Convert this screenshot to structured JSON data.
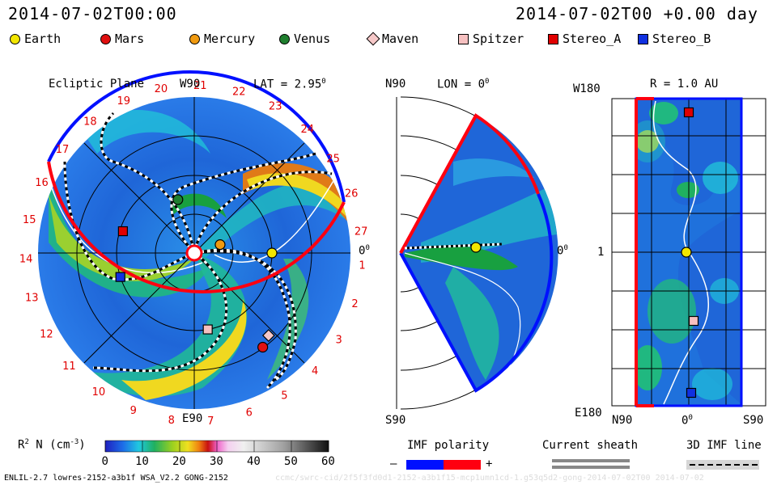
{
  "header": {
    "left_time": "2014-07-02T00:00",
    "right_time": "2014-07-02T00 +0.00 day"
  },
  "legend": [
    {
      "name": "Earth",
      "shape": "circle",
      "color": "#f2e600"
    },
    {
      "name": "Mars",
      "shape": "circle",
      "color": "#e01010"
    },
    {
      "name": "Mercury",
      "shape": "circle",
      "color": "#f09a10"
    },
    {
      "name": "Venus",
      "shape": "circle",
      "color": "#1f7f2f"
    },
    {
      "name": "Maven",
      "shape": "diamond",
      "color": "#f6c8c8"
    },
    {
      "name": "Spitzer",
      "shape": "square",
      "color": "#f6c0c0"
    },
    {
      "name": "Stereo_A",
      "shape": "square",
      "color": "#e00000"
    },
    {
      "name": "Stereo_B",
      "shape": "square",
      "color": "#1030e0"
    }
  ],
  "ecliptic_panel": {
    "title": "Ecliptic Plane",
    "top_label": "W90",
    "lat_label": "LAT = 2.95",
    "lat_sup": "0",
    "right_label": "0",
    "right_sup": "0",
    "bottom_label": "E90",
    "rotation_numbers": [
      "1",
      "2",
      "3",
      "4",
      "5",
      "6",
      "7",
      "8",
      "9",
      "10",
      "11",
      "12",
      "13",
      "14",
      "15",
      "16",
      "17",
      "18",
      "19",
      "20",
      "21",
      "22",
      "23",
      "24",
      "25",
      "26",
      "27"
    ]
  },
  "meridional_panel": {
    "top_left": "N90",
    "lon_label": "LON = 0",
    "lon_sup": "0",
    "right_label": "0",
    "right_sup": "0",
    "bottom_left": "S90"
  },
  "synoptic_panel": {
    "top_left": "W180",
    "radius_label": "R = 1.0 AU",
    "mid_left": "1",
    "bottom_left": "E180",
    "x_left": "N90",
    "x_mid": "0",
    "x_mid_sup": "0",
    "x_right": "S90"
  },
  "colorbar": {
    "label": "R",
    "label_sup": "2",
    "label_rest": " N (cm",
    "label_sup2": "-3",
    "label_end": ")",
    "ticks": [
      "0",
      "10",
      "20",
      "30",
      "40",
      "50",
      "60"
    ],
    "range": [
      0,
      60
    ]
  },
  "imf_polarity": {
    "title": "IMF polarity",
    "minus": "–",
    "plus": "+",
    "colors": [
      "#0010ff",
      "#ff0010"
    ]
  },
  "current_sheath": {
    "title": "Current sheath"
  },
  "imf_line": {
    "title": "3D IMF line"
  },
  "footer": {
    "model": "ENLIL-2.7 lowres-2152-a3b1f WSA_V2.2 GONG-2152",
    "watermark": "ccmc/swrc-cid/2f5f3fd0d1-2152-a3b1f15-mcp1umn1cd-1.g53q5d2-gong-2014-07-02T00   2014-07-02"
  },
  "chart_data": {
    "type": "heatmap",
    "title": "Ecliptic Plane",
    "quantity": "R^2 N (cm^-3)",
    "color_range": [
      0,
      60
    ],
    "positions_ecliptic_au": [
      {
        "name": "Earth",
        "r": 1.0,
        "lon_deg": 0
      },
      {
        "name": "Mercury",
        "r": 0.35,
        "lon_deg": 18
      },
      {
        "name": "Venus",
        "r": 0.72,
        "lon_deg": 107
      },
      {
        "name": "Mars",
        "r": 1.5,
        "lon_deg": 306
      },
      {
        "name": "Stereo_A",
        "r": 0.96,
        "lon_deg": 163
      },
      {
        "name": "Stereo_B",
        "r": 1.0,
        "lon_deg": 198
      },
      {
        "name": "Spitzer",
        "r": 1.0,
        "lon_deg": 280
      },
      {
        "name": "Maven",
        "r": 1.43,
        "lon_deg": 312
      }
    ],
    "lat_deg": 2.95,
    "lon_deg": 0,
    "radius_au": 1.0
  }
}
